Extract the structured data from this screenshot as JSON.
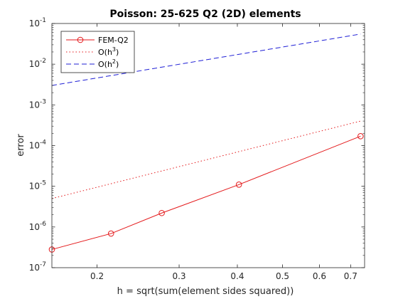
{
  "chart_data": {
    "type": "line",
    "title": "Poisson: 25-625 Q2 (2D) elements",
    "xlabel": "h = sqrt(sum(element sides squared))",
    "ylabel": "error",
    "xscale": "log",
    "yscale": "log",
    "xlim": [
      0.16,
      0.75
    ],
    "ylim": [
      1e-07,
      0.1
    ],
    "xticks": [
      {
        "value": 0.2,
        "label": "0.2"
      },
      {
        "value": 0.3,
        "label": "0.3"
      },
      {
        "value": 0.4,
        "label": "0.4"
      },
      {
        "value": 0.5,
        "label": "0.5"
      },
      {
        "value": 0.6,
        "label": "0.6"
      },
      {
        "value": 0.7,
        "label": "0.7"
      }
    ],
    "yticks": [
      {
        "value": 1e-07,
        "base": "10",
        "exp": "-7"
      },
      {
        "value": 1e-06,
        "base": "10",
        "exp": "-6"
      },
      {
        "value": 1e-05,
        "base": "10",
        "exp": "-5"
      },
      {
        "value": 0.0001,
        "base": "10",
        "exp": "-4"
      },
      {
        "value": 0.001,
        "base": "10",
        "exp": "-3"
      },
      {
        "value": 0.01,
        "base": "10",
        "exp": "-2"
      },
      {
        "value": 0.1,
        "base": "10",
        "exp": "-1"
      }
    ],
    "grid": false,
    "legend_position": "top-left",
    "series": [
      {
        "name": "FEM-Q2",
        "legend_main": "FEM-Q2",
        "legend_sup": "",
        "legend_tail": "",
        "color": "#e41a1c",
        "style": "solid",
        "marker": "circle",
        "x": [
          0.16,
          0.2143,
          0.2753,
          0.4031,
          0.7352
        ],
        "y": [
          2.8e-07,
          6.9e-07,
          2.2e-06,
          1.1e-05,
          0.00017
        ]
      },
      {
        "name": "O(h^3)",
        "legend_main": "O(h",
        "legend_sup": "3",
        "legend_tail": ")",
        "color": "#e41a1c",
        "style": "dotted",
        "marker": "none",
        "x": [
          0.16,
          0.7352
        ],
        "y": [
          5e-06,
          0.0004
        ]
      },
      {
        "name": "O(h^2)",
        "legend_main": "O(h",
        "legend_sup": "2",
        "legend_tail": ")",
        "color": "#1f1fd6",
        "style": "dashed",
        "marker": "none",
        "x": [
          0.16,
          0.7352
        ],
        "y": [
          0.003,
          0.055
        ]
      }
    ]
  }
}
